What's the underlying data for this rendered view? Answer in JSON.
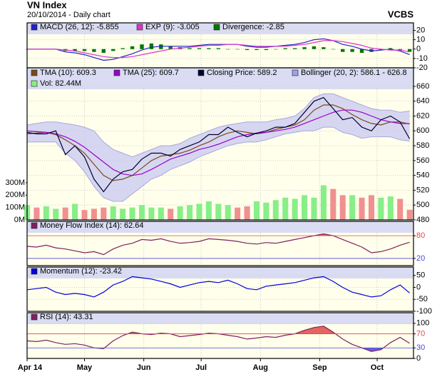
{
  "header": {
    "title": "VN Index",
    "subtitle": "20/10/2014 - Daily chart",
    "brand": "VCBS"
  },
  "chart_data": {
    "x": [
      0,
      5,
      10,
      15,
      20,
      25,
      30,
      35,
      40,
      45,
      50,
      55,
      60,
      65,
      70,
      75,
      80,
      85,
      90,
      95,
      100,
      105,
      110,
      115,
      120,
      125,
      130,
      135,
      140,
      145,
      150,
      155,
      160,
      165,
      170,
      175,
      180,
      185,
      190,
      195,
      200
    ],
    "xlim": [
      0,
      202
    ],
    "xticks": [
      {
        "value": 0,
        "label": "Apr 14"
      },
      {
        "value": 30,
        "label": "May"
      },
      {
        "value": 61,
        "label": "Jun"
      },
      {
        "value": 91,
        "label": "Jul"
      },
      {
        "value": 122,
        "label": "Aug"
      },
      {
        "value": 153,
        "label": "Sep"
      },
      {
        "value": 183,
        "label": "Oct"
      }
    ],
    "panels": [
      {
        "type": "macd",
        "ylim": [
          -20,
          28
        ],
        "yticks": [
          20,
          10,
          0,
          -10,
          -20
        ],
        "series": [
          {
            "name": "MACD (26, 12): -5.855",
            "kind": "line",
            "color": "#2222cc",
            "values": [
              0,
              0,
              0,
              0,
              -3,
              -4,
              -6,
              -9,
              -12,
              -11,
              -8,
              -5,
              -1,
              2,
              3,
              3,
              3,
              3,
              4,
              5,
              5,
              5,
              5,
              3,
              2,
              2,
              3,
              4,
              5,
              7,
              10,
              11,
              9,
              5,
              3,
              0,
              -2,
              -1,
              0,
              -2,
              -5.855
            ]
          },
          {
            "name": "EXP (9): -3.005",
            "kind": "line",
            "color": "#dd33cc",
            "values": [
              0,
              0,
              0,
              0,
              -1,
              -2,
              -4,
              -6,
              -8,
              -9,
              -9,
              -8,
              -6,
              -4,
              -2,
              0,
              1,
              2,
              3,
              4,
              4,
              5,
              5,
              4,
              3,
              3,
              3,
              3,
              4,
              5,
              7,
              9,
              9,
              8,
              6,
              4,
              1,
              0,
              -1,
              -1,
              -3.005
            ]
          },
          {
            "name": "Divergence: -2.85",
            "kind": "bar",
            "color": "#007700",
            "values": [
              0,
              0,
              0,
              0,
              -2,
              -2,
              -2,
              -3,
              -4,
              -2,
              1,
              3,
              5,
              6,
              5,
              3,
              2,
              1,
              1,
              1,
              1,
              0,
              0,
              -1,
              -1,
              -1,
              0,
              1,
              1,
              2,
              3,
              2,
              0,
              -3,
              -3,
              -4,
              -3,
              -1,
              1,
              -1,
              -2.85
            ]
          }
        ]
      },
      {
        "type": "price",
        "ylim": [
          480,
          685
        ],
        "yticks": [
          660,
          640,
          620,
          600,
          580,
          560,
          540,
          520,
          500,
          480
        ],
        "y2lim": [
          0,
          1229
        ],
        "y2ticks": [
          {
            "value": 300,
            "label": "300M"
          },
          {
            "value": 200,
            "label": "200M"
          },
          {
            "value": 100,
            "label": "100M"
          },
          {
            "value": 0,
            "label": "0M"
          }
        ],
        "series": [
          {
            "name": "TMA (10): 609.3",
            "kind": "line",
            "color": "#7a4a1a",
            "values": [
              596,
              597,
              598,
              595,
              588,
              580,
              570,
              555,
              540,
              533,
              535,
              540,
              550,
              560,
              566,
              568,
              570,
              574,
              580,
              585,
              592,
              597,
              600,
              598,
              596,
              598,
              602,
              605,
              608,
              615,
              628,
              635,
              635,
              630,
              622,
              615,
              610,
              608,
              612,
              612,
              609.3
            ]
          },
          {
            "name": "TMA (25): 609.7",
            "kind": "line",
            "color": "#9900cc",
            "values": [
              600,
              599,
              598,
              596,
              592,
              586,
              578,
              568,
              558,
              548,
              542,
              540,
              542,
              548,
              555,
              562,
              566,
              570,
              575,
              578,
              582,
              587,
              592,
              595,
              597,
              598,
              600,
              602,
              605,
              610,
              615,
              620,
              625,
              628,
              628,
              625,
              620,
              615,
              612,
              610,
              609.7
            ]
          },
          {
            "name": "Closing Price: 589.2",
            "kind": "close",
            "color": "#000033",
            "values": [
              598,
              596,
              596,
              600,
              568,
              580,
              565,
              535,
              518,
              535,
              545,
              548,
              562,
              570,
              570,
              566,
              575,
              580,
              585,
              595,
              595,
              605,
              598,
              592,
              597,
              600,
              605,
              605,
              610,
              625,
              640,
              645,
              630,
              615,
              618,
              605,
              600,
              615,
              620,
              612,
              589.2
            ]
          },
          {
            "name": "Bollinger (20, 2): 586.1 - 626.8",
            "kind": "band",
            "color": "#c8c8f2",
            "upper": [
              608,
              610,
              612,
              612,
              610,
              608,
              605,
              600,
              585,
              575,
              570,
              565,
              570,
              575,
              580,
              580,
              583,
              590,
              595,
              600,
              605,
              608,
              610,
              612,
              612,
              612,
              615,
              617,
              620,
              630,
              645,
              650,
              650,
              645,
              640,
              635,
              630,
              628,
              628,
              625,
              626.8
            ],
            "lower": [
              585,
              585,
              585,
              585,
              570,
              560,
              545,
              525,
              510,
              505,
              505,
              515,
              525,
              535,
              540,
              548,
              553,
              558,
              565,
              570,
              575,
              580,
              583,
              585,
              585,
              588,
              592,
              596,
              598,
              600,
              600,
              605,
              605,
              598,
              595,
              590,
              592,
              592,
              592,
              588,
              586.1
            ]
          },
          {
            "name": "Vol: 82.44M",
            "kind": "volume",
            "axis": "y2",
            "color": "#88ee88",
            "down_color": "#f09090",
            "values": [
              120,
              100,
              110,
              90,
              100,
              130,
              80,
              90,
              100,
              110,
              90,
              100,
              120,
              100,
              100,
              90,
              110,
              120,
              130,
              150,
              130,
              120,
              100,
              110,
              150,
              140,
              160,
              180,
              170,
              200,
              180,
              280,
              250,
              200,
              200,
              180,
              200,
              180,
              190,
              170,
              82.44
            ]
          }
        ]
      },
      {
        "type": "oscillator",
        "ylim": [
          1,
          118
        ],
        "yticks": [
          80,
          20
        ],
        "overbought": 80,
        "oversold": 20,
        "series": [
          {
            "name": "Money Flow Index (14): 62.64",
            "kind": "line",
            "color": "#802060",
            "values": [
              52,
              50,
              55,
              48,
              45,
              40,
              35,
              38,
              30,
              45,
              55,
              60,
              70,
              68,
              72,
              65,
              60,
              62,
              65,
              72,
              70,
              68,
              65,
              60,
              58,
              62,
              60,
              65,
              70,
              75,
              80,
              85,
              80,
              70,
              60,
              50,
              35,
              38,
              45,
              55,
              62.64
            ]
          }
        ]
      },
      {
        "type": "oscillator",
        "ylim": [
          -100,
          85
        ],
        "yticks": [
          50,
          0,
          -50,
          -100
        ],
        "series": [
          {
            "name": "Momentum (12): -23.42",
            "kind": "line",
            "color": "#0000dd",
            "values": [
              -10,
              -5,
              0,
              -20,
              -30,
              -25,
              -30,
              -40,
              -20,
              10,
              25,
              45,
              40,
              35,
              25,
              15,
              0,
              10,
              20,
              25,
              20,
              30,
              15,
              -5,
              -10,
              5,
              10,
              15,
              20,
              30,
              40,
              45,
              25,
              0,
              -20,
              -30,
              -40,
              -35,
              -10,
              10,
              -23.42
            ]
          }
        ]
      },
      {
        "type": "oscillator",
        "ylim": [
          0,
          130
        ],
        "yticks": [
          100,
          70,
          30,
          0
        ],
        "overbought": 70,
        "oversold": 30,
        "series": [
          {
            "name": "RSI (14): 43.31",
            "kind": "line",
            "color": "#802060",
            "values": [
              50,
              48,
              52,
              45,
              40,
              42,
              38,
              30,
              28,
              50,
              65,
              75,
              70,
              68,
              72,
              70,
              62,
              65,
              68,
              72,
              70,
              66,
              62,
              55,
              58,
              62,
              60,
              66,
              70,
              80,
              88,
              92,
              75,
              55,
              40,
              30,
              20,
              25,
              45,
              60,
              43.31
            ]
          }
        ]
      }
    ]
  }
}
